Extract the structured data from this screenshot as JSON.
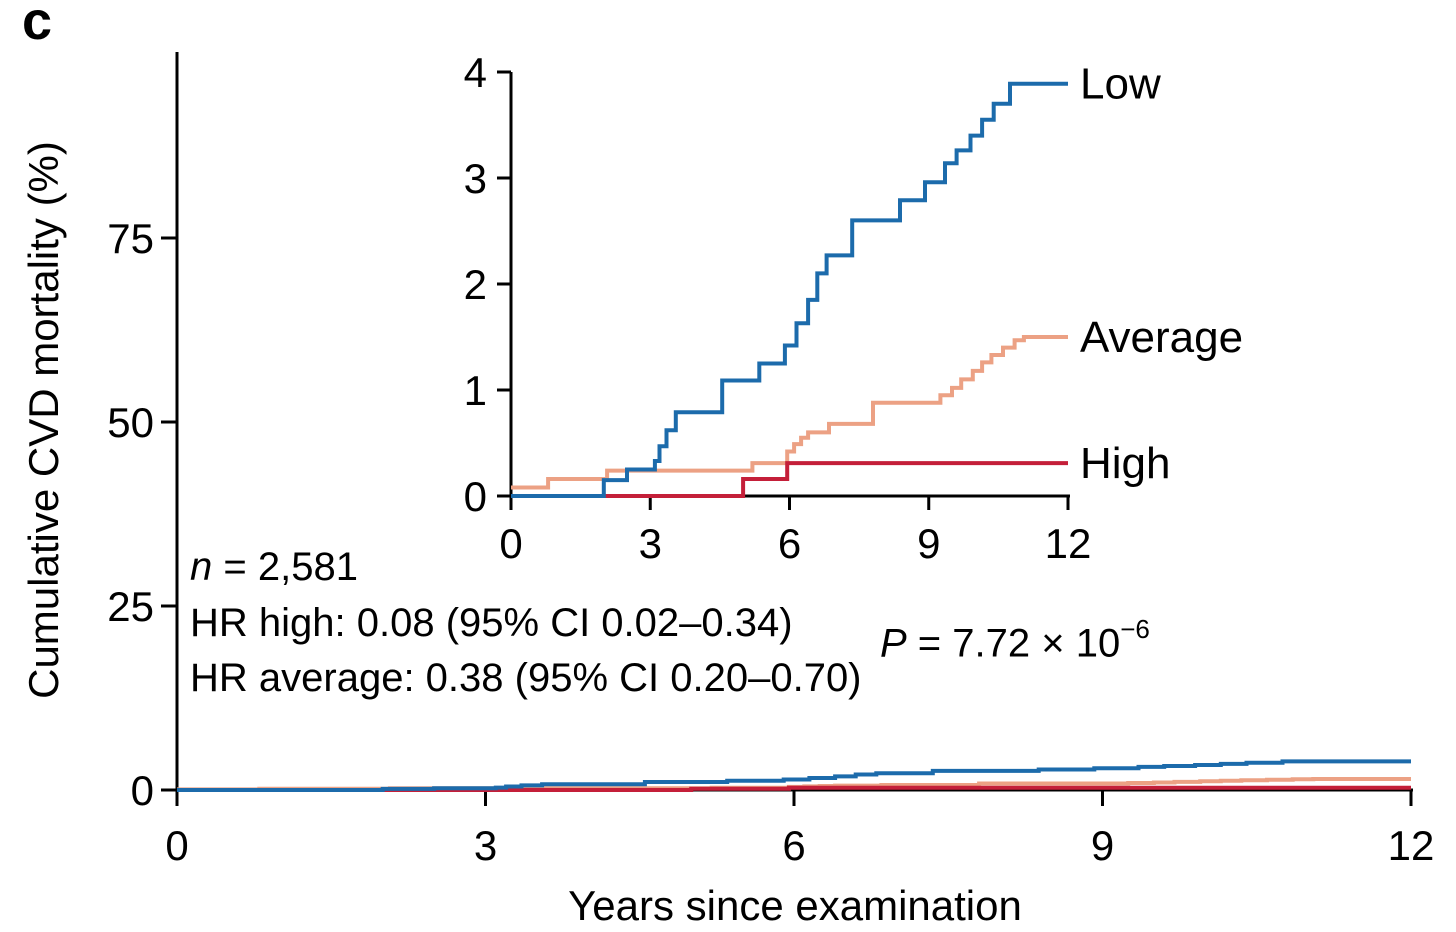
{
  "panel_label": "c",
  "chart_data": {
    "type": "line",
    "step": true,
    "title": "",
    "xlabel": "Years since examination",
    "ylabel": "Cumulative CVD mortality (%)",
    "legend_position": "right-of-inset",
    "grid": false,
    "main_axes": {
      "xlim": [
        0,
        12
      ],
      "ylim": [
        0,
        100
      ],
      "xticks": [
        0,
        3,
        6,
        9,
        12
      ],
      "yticks": [
        0,
        25,
        50,
        75
      ]
    },
    "inset_axes": {
      "xlim": [
        0,
        12
      ],
      "ylim": [
        0,
        4
      ],
      "xticks": [
        0,
        3,
        6,
        9,
        12
      ],
      "yticks": [
        0,
        1,
        2,
        3,
        4
      ]
    },
    "series": [
      {
        "name": "Average",
        "color": "#eca184",
        "points": [
          [
            0,
            0.08
          ],
          [
            0.8,
            0.16
          ],
          [
            2.07,
            0.24
          ],
          [
            5.2,
            0.31
          ],
          [
            5.95,
            0.42
          ],
          [
            6.1,
            0.49
          ],
          [
            6.25,
            0.55
          ],
          [
            6.4,
            0.6
          ],
          [
            6.85,
            0.68
          ],
          [
            7.8,
            0.88
          ],
          [
            9.25,
            0.95
          ],
          [
            9.5,
            1.02
          ],
          [
            9.7,
            1.1
          ],
          [
            9.95,
            1.18
          ],
          [
            10.15,
            1.26
          ],
          [
            10.35,
            1.33
          ],
          [
            10.6,
            1.4
          ],
          [
            10.85,
            1.47
          ],
          [
            11.05,
            1.5
          ],
          [
            12,
            1.5
          ]
        ]
      },
      {
        "name": "High",
        "color": "#c41f39",
        "points": [
          [
            0,
            0
          ],
          [
            5.0,
            0.16
          ],
          [
            5.95,
            0.31
          ],
          [
            12,
            0.31
          ]
        ]
      },
      {
        "name": "Low",
        "color": "#1c6bab",
        "points": [
          [
            0,
            0
          ],
          [
            2.0,
            0.15
          ],
          [
            2.5,
            0.25
          ],
          [
            3.1,
            0.33
          ],
          [
            3.2,
            0.47
          ],
          [
            3.35,
            0.62
          ],
          [
            3.55,
            0.79
          ],
          [
            4.55,
            1.09
          ],
          [
            5.35,
            1.25
          ],
          [
            5.9,
            1.42
          ],
          [
            6.15,
            1.63
          ],
          [
            6.4,
            1.85
          ],
          [
            6.6,
            2.1
          ],
          [
            6.8,
            2.27
          ],
          [
            7.35,
            2.6
          ],
          [
            8.38,
            2.79
          ],
          [
            8.92,
            2.96
          ],
          [
            9.35,
            3.14
          ],
          [
            9.6,
            3.26
          ],
          [
            9.9,
            3.4
          ],
          [
            10.15,
            3.55
          ],
          [
            10.4,
            3.7
          ],
          [
            10.75,
            3.89
          ],
          [
            12,
            3.89
          ]
        ]
      }
    ],
    "legend_labels": [
      "Low",
      "Average",
      "High"
    ]
  },
  "annotations": {
    "n_italic": "n",
    "n_rest": " = 2,581",
    "hr_high": "HR high: 0.08 (95% CI 0.02–0.34)",
    "hr_average": "HR average: 0.38 (95% CI 0.20–0.70)",
    "p_italic": "P",
    "p_rest": " = 7.72 × 10",
    "p_exponent": "−6"
  },
  "colors": {
    "low": "#1c6bab",
    "average": "#eca184",
    "high": "#c41f39",
    "axis": "#000000"
  }
}
